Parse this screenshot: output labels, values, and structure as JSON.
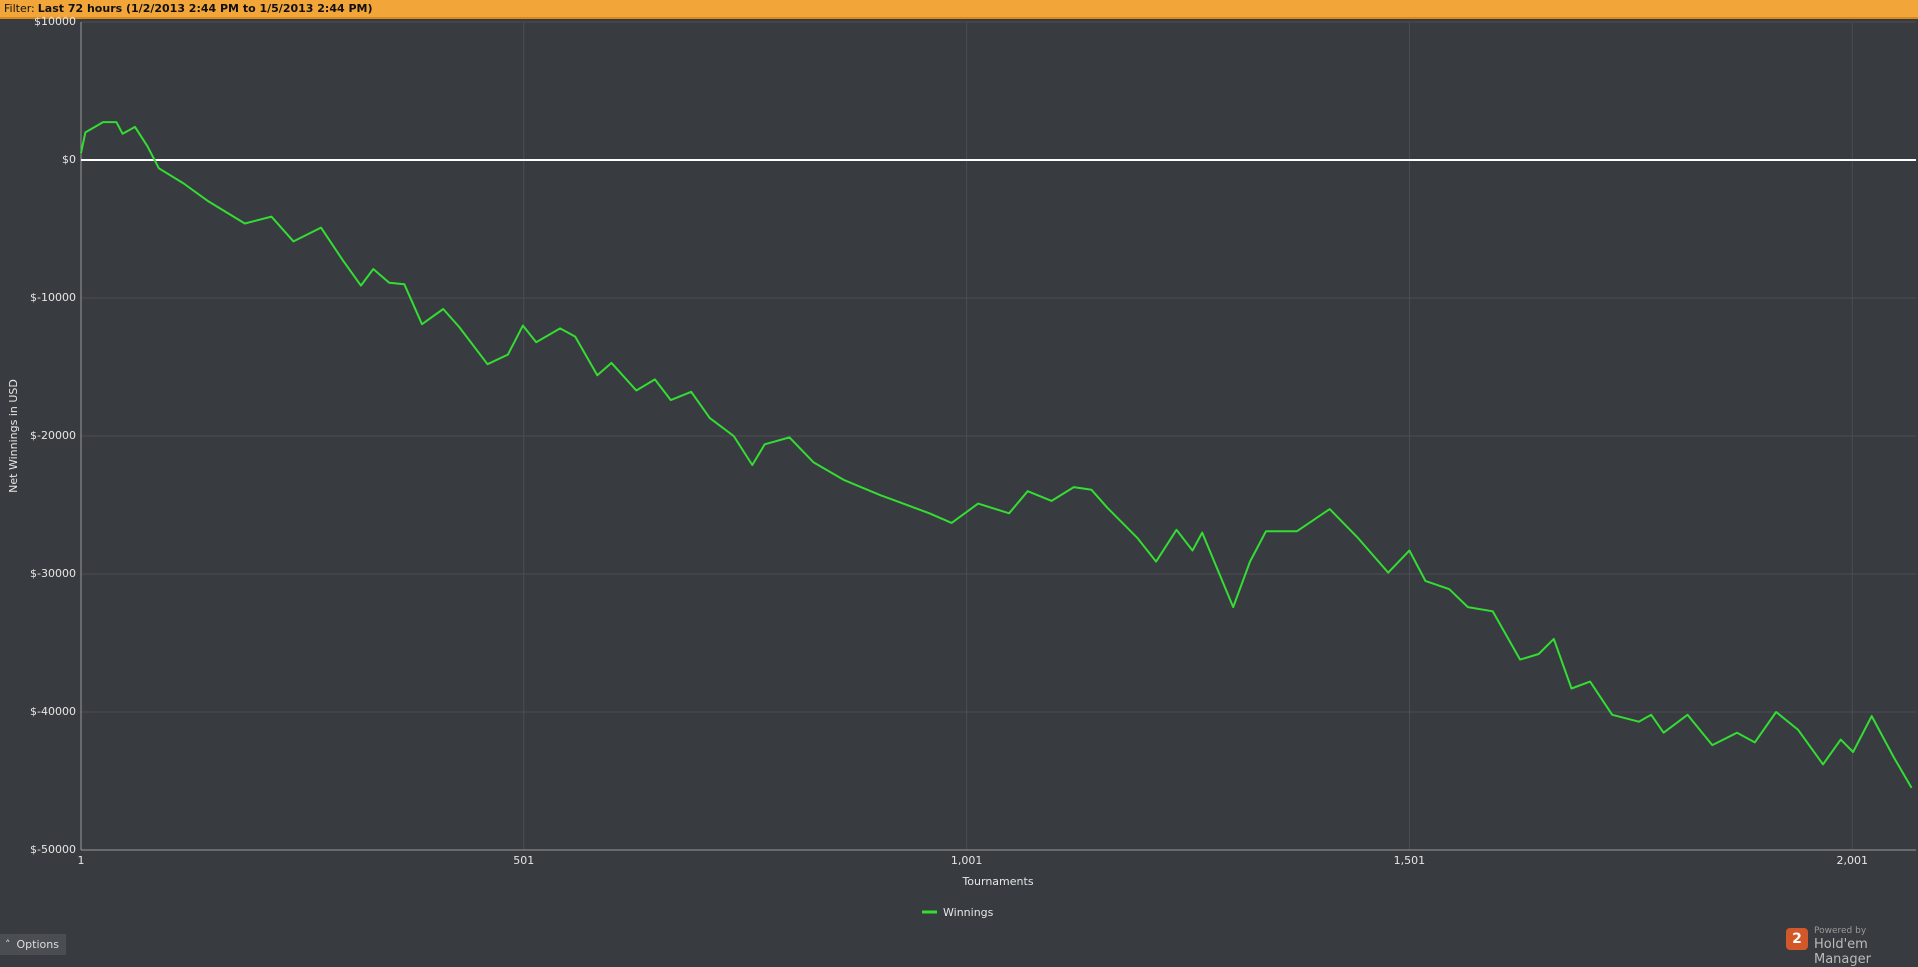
{
  "filter_label": "Filter:",
  "filter_value": "Last 72 hours (1/2/2013 2:44 PM to 1/5/2013 2:44 PM)",
  "options_label": "Options",
  "powered_by": "Powered by",
  "brand_badge": "2",
  "brand": "Hold'em Manager",
  "chart_data": {
    "type": "line",
    "x_label": "Tournaments",
    "y_label": "Net Winnings in USD",
    "xlim": [
      1,
      2073
    ],
    "ylim": [
      -50000,
      10000
    ],
    "xticks": [
      1,
      501,
      {
        "value": 1001,
        "label": "1,001"
      },
      {
        "value": 1501,
        "label": "1,501"
      },
      {
        "value": 2001,
        "label": "2,001"
      }
    ],
    "yticks": [
      {
        "value": -50000,
        "label": "$-50000"
      },
      {
        "value": -40000,
        "label": "$-40000"
      },
      {
        "value": -30000,
        "label": "$-30000"
      },
      {
        "value": -20000,
        "label": "$-20000"
      },
      {
        "value": -10000,
        "label": "$-10000"
      },
      {
        "value": 0,
        "label": "$0"
      },
      {
        "value": 10000,
        "label": "$10000"
      }
    ],
    "grid": true,
    "reference_line": 0,
    "legend": "bottom",
    "x": [
      1,
      6,
      26,
      41,
      48,
      62,
      76,
      89,
      117,
      145,
      186,
      216,
      241,
      272,
      297,
      317,
      331,
      349,
      366,
      386,
      410,
      428,
      460,
      483,
      500,
      515,
      542,
      559,
      584,
      600,
      628,
      649,
      667,
      690,
      711,
      738,
      759,
      773,
      801,
      828,
      863,
      904,
      959,
      984,
      1014,
      1049,
      1070,
      1097,
      1122,
      1142,
      1160,
      1194,
      1215,
      1238,
      1256,
      1267,
      1302,
      1321,
      1339,
      1374,
      1411,
      1443,
      1477,
      1501,
      1519,
      1546,
      1567,
      1595,
      1626,
      1647,
      1664,
      1684,
      1705,
      1730,
      1760,
      1774,
      1788,
      1815,
      1843,
      1871,
      1891,
      1915,
      1940,
      1968,
      1988,
      2002,
      2023,
      2048,
      2068
    ],
    "series": [
      {
        "name": "Winnings",
        "color": "#33dd33",
        "values": [
          500,
          2000,
          2750,
          2750,
          1900,
          2400,
          1000,
          -600,
          -1700,
          -3000,
          -4600,
          -4100,
          -5900,
          -4900,
          -7300,
          -9100,
          -7900,
          -8900,
          -9000,
          -11900,
          -10800,
          -12100,
          -14800,
          -14100,
          -12000,
          -13200,
          -12200,
          -12800,
          -15600,
          -14700,
          -16700,
          -15900,
          -17400,
          -16800,
          -18700,
          -20000,
          -22100,
          -20600,
          -20100,
          -21900,
          -23200,
          -24300,
          -25600,
          -26300,
          -24900,
          -25600,
          -24000,
          -24700,
          -23700,
          -23900,
          -25200,
          -27400,
          -29100,
          -26800,
          -28300,
          -27000,
          -32400,
          -29100,
          -26900,
          -26900,
          -25300,
          -27400,
          -29900,
          -28300,
          -30500,
          -31100,
          -32400,
          -32700,
          -36200,
          -35800,
          -34700,
          -38300,
          -37800,
          -40200,
          -40700,
          -40200,
          -41500,
          -40200,
          -42400,
          -41500,
          -42200,
          -40000,
          -41300,
          -43800,
          -42000,
          -42900,
          -40300,
          -43300,
          -45500
        ]
      }
    ]
  }
}
